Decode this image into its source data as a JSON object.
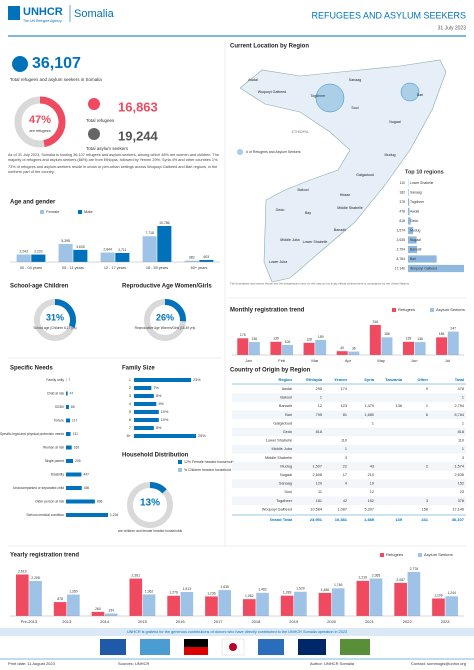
{
  "header": {
    "org": "UNHCR",
    "tagline": "The UN Refugee Agency",
    "country": "Somalia",
    "title": "REFUGEES AND ASYLUM SEEKERS",
    "date": "31 July 2023"
  },
  "overview": {
    "total": "36,107",
    "total_caption": "Total refugees and asylum seekers in Somalia",
    "share": {
      "value": 47,
      "label": "47%"
    },
    "share_caption": "are refugees",
    "refugees": "16,863",
    "refugees_caption": "Total refugees",
    "asylum": "19,244",
    "asylum_caption": "Total asylum seekers",
    "paragraphs": [
      "As of 31 July 2023, Somalia is hosting 36,107 refugees and asylum-seekers, among which 48% are women and children. The majority of refugees and asylum-seekers (66%) are from Ethiopia, followed by Yemen 29%, Syria 4% and other countries 1%.",
      "73% of refugees and asylum-seekers reside in urban or peri-urban settings across Woqooyi Galbeed and Bari regions, in the northern part of the country."
    ]
  },
  "age_gender": {
    "type": "bar",
    "title": "Age and gender",
    "categories": [
      "00 - 04 years",
      "05 - 11 years",
      "12 - 17 years",
      "18 - 59 years",
      "60+ years"
    ],
    "series": [
      {
        "name": "Female",
        "color": "#9ec3e6",
        "values": [
          2243,
          5398,
          2844,
          7718,
          383
        ],
        "value_labels": [
          "2,243",
          "5,398",
          "2,844",
          "7,718",
          "383"
        ]
      },
      {
        "name": "Male",
        "color": "#0072bc",
        "values": [
          2232,
          3635,
          2711,
          10786,
          603
        ],
        "value_labels": [
          "2,232",
          "3,635",
          "2,711",
          "10,786",
          "603"
        ]
      }
    ]
  },
  "school": {
    "title": "School-age Children",
    "share": {
      "value": 31,
      "label": "31%"
    },
    "caption": "School age (Children 6-17 yrs)"
  },
  "reproductive": {
    "title": "Reproductive Age Women/Girls",
    "share": {
      "value": 26,
      "label": "26%"
    },
    "caption": "Reproductive Age Women/Girls (15-49 yrs)"
  },
  "specific_needs": {
    "type": "hbar",
    "title": "Specific Needs",
    "color": "#0072bc",
    "categories": [
      "Family unity",
      "Child at risk",
      "SGBV",
      "Torture",
      "Specific legal and physical protection needs",
      "Woman at risk",
      "Single parent",
      "Disability",
      "Unaccompanied or separated child",
      "Older person at risk",
      "Serious medical condition"
    ],
    "values": [
      7,
      47,
      85,
      117,
      131,
      165,
      205,
      447,
      456,
      836,
      1216
    ],
    "value_labels": [
      "7",
      "47",
      "85",
      "117",
      "131",
      "165",
      "205",
      "447",
      "456",
      "836",
      "1,216"
    ]
  },
  "family_size": {
    "type": "hbar",
    "title": "Family Size",
    "color": "#0072bc",
    "categories": [
      "1",
      "2",
      "3",
      "4",
      "5",
      "6",
      "7",
      "8+"
    ],
    "values": [
      23,
      7,
      8,
      9,
      10,
      10,
      8,
      25
    ],
    "value_labels": [
      "23%",
      "7%",
      "8%",
      "9%",
      "10%",
      "10%",
      "8%",
      "25%"
    ]
  },
  "household": {
    "title": "Household Distribution",
    "share": {
      "value": 13,
      "label": "13%"
    },
    "caption": "are children and female headed households",
    "legend": [
      {
        "label": "12% Female headed household",
        "color": "#0072bc"
      },
      {
        "label": "% Children headed household",
        "color": "#9ec3e6"
      }
    ]
  },
  "map": {
    "title": "Current Location by Region",
    "legend": "# of Refugees and Asylum Seekers",
    "country": "ETHIOPIA",
    "regions": [
      "Awdal",
      "Woqooyi Galbeed",
      "Togdheer",
      "Sanaag",
      "Bari",
      "Sool",
      "Nugaal",
      "Mudug",
      "Galgaduud",
      "Hiraan",
      "Bakool",
      "Gedo",
      "Bay",
      "Middle Shabelle",
      "Banadir",
      "Lower Shabelle",
      "Middle Juba",
      "Lower Juba"
    ],
    "note": "The boundaries and names shown and the designations used on this map do not imply official endorsement or acceptance by the United Nations."
  },
  "top_regions": {
    "type": "hbar",
    "title": "Top 10 regions",
    "color": "#8fb8de",
    "categories": [
      "Lower Shabelle",
      "Sanaag",
      "Togdheer",
      "Awdal",
      "Gedo",
      "Mudug",
      "Nugaal",
      "Banadir",
      "Bari",
      "Woqooyi Galbeed"
    ],
    "values": [
      110,
      182,
      378,
      478,
      818,
      1574,
      2635,
      2754,
      8784,
      17146
    ],
    "value_labels": [
      "110",
      "182",
      "378",
      "478",
      "818",
      "1,574",
      "2,635",
      "2,754",
      "8,784",
      "17,146"
    ]
  },
  "monthly": {
    "type": "bar",
    "title": "Monthly registration trend",
    "categories": [
      "Jan",
      "Feb",
      "Mar",
      "Apr",
      "May",
      "Jun",
      "Jul"
    ],
    "series": [
      {
        "name": "Refugees",
        "color": "#ef4a60",
        "values": [
          176,
          139,
          128,
          40,
          316,
          139,
          186
        ]
      },
      {
        "name": "Asylum Seekers",
        "color": "#9ec3e6",
        "values": [
          136,
          106,
          159,
          36,
          186,
          136,
          247
        ]
      }
    ]
  },
  "origin": {
    "title": "Country of Origin by Region",
    "headers": [
      "Region",
      "Ethiopia",
      "Yemen",
      "Syria",
      "Tanzania",
      "Other",
      "Total"
    ],
    "rows": [
      [
        "Awdal",
        "295",
        "174",
        null,
        null,
        "9",
        "478"
      ],
      [
        "Bakool",
        "1",
        null,
        null,
        null,
        null,
        "1"
      ],
      [
        "Banadir",
        "12",
        "123",
        "1,479",
        "136",
        "1",
        "2,754"
      ],
      [
        "Bari",
        "795",
        "81",
        "1,680",
        null,
        "6",
        "8,784"
      ],
      [
        "Galgaduud",
        null,
        null,
        "1",
        null,
        null,
        "1"
      ],
      [
        "Gedo",
        "818",
        null,
        null,
        null,
        null,
        "818"
      ],
      [
        "Lower Shabelle",
        null,
        "110",
        null,
        null,
        null,
        "110"
      ],
      [
        "Middle Juba",
        null,
        "1",
        null,
        null,
        null,
        "1"
      ],
      [
        "Middle Shabelle",
        null,
        "3",
        null,
        null,
        null,
        "3"
      ],
      [
        "Mudug",
        "1,507",
        "22",
        "43",
        null,
        "2",
        "1,574"
      ],
      [
        "Nugaal",
        "2,608",
        "17",
        "210",
        null,
        null,
        "2,635"
      ],
      [
        "Sanaag",
        "129",
        "4",
        "19",
        null,
        null,
        "152"
      ],
      [
        "Sool",
        "11",
        null,
        "12",
        null,
        null,
        "23"
      ],
      [
        "Togdheer",
        "181",
        "42",
        "152",
        null,
        "3",
        "378"
      ],
      [
        "Woqooyi Galbeed",
        "10,584",
        "1,087",
        "5,307",
        null,
        "158",
        "17,146"
      ]
    ],
    "total": [
      "Grand Total",
      "23,951",
      "10,381",
      "1,385",
      "139",
      "241",
      "36,107"
    ]
  },
  "yearly": {
    "type": "bar",
    "title": "Yearly registration trend",
    "categories": [
      "Pre-2013",
      "2013",
      "2014",
      "2015",
      "2016",
      "2017",
      "2018",
      "2019",
      "2020",
      "2021",
      "2022",
      "2023"
    ],
    "series": [
      {
        "name": "Refugees",
        "color": "#ef4a60",
        "values": [
          2619,
          878,
          260,
          2361,
          1276,
          1236,
          1062,
          1283,
          1456,
          2219,
          2087,
          1106
        ],
        "value_labels": [
          "2,619",
          "878",
          "260",
          "2,361",
          "1,276",
          "1,236",
          "1,062",
          "1,283",
          "1,456",
          "2,219",
          "2,087",
          "1,106"
        ]
      },
      {
        "name": "Asylum Seekers",
        "color": "#9ec3e6",
        "values": [
          2208,
          1350,
          154,
          1362,
          1513,
          1635,
          1462,
          1529,
          1746,
          2365,
          2776,
          1244
        ],
        "value_labels": [
          "2,208",
          "1,350",
          "154",
          "1,362",
          "1,513",
          "1,635",
          "1,462",
          "1,529",
          "1,746",
          "2,365",
          "2,776",
          "1,244"
        ]
      }
    ]
  },
  "footer": {
    "thanks": "UNHCR is grateful for the generous contributions of donors who have directly contributed to the UNHCR Somalia operation in 2023",
    "print_date": "Print date: 11 August 2023",
    "sources": "Sources: UNHCR",
    "author": "Author: UNHCR Somalia",
    "contact": "Contact: sommogis@unhcr.org"
  }
}
